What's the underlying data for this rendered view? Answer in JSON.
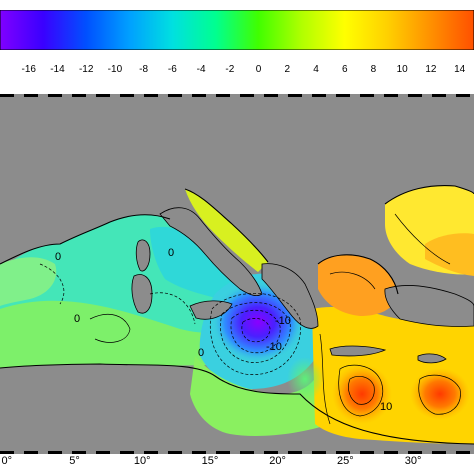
{
  "colorbar": {
    "ticks": [
      "-16",
      "-14",
      "-12",
      "-10",
      "-8",
      "-6",
      "-4",
      "-2",
      "0",
      "2",
      "4",
      "6",
      "8",
      "10",
      "12",
      "14"
    ],
    "tick_values": [
      -16,
      -14,
      -12,
      -10,
      -8,
      -6,
      -4,
      -2,
      0,
      2,
      4,
      6,
      8,
      10,
      12,
      14
    ],
    "range": [
      -18,
      15
    ],
    "colors": [
      "#8000ff",
      "#3a00ff",
      "#0050ff",
      "#00a0ff",
      "#00e0e0",
      "#00ff90",
      "#40ff00",
      "#b0ff00",
      "#ffff00",
      "#ffd000",
      "#ff9000",
      "#ff5000"
    ]
  },
  "map": {
    "background": "#8c8c8c",
    "x_ticks": [
      "0°",
      "5°",
      "10°",
      "15°",
      "20°",
      "25°",
      "30°"
    ],
    "x_tick_values": [
      0,
      5,
      10,
      15,
      20,
      25,
      30
    ],
    "lon_range": [
      -0.5,
      34.5
    ],
    "contour_labels": [
      "0",
      "0",
      "0",
      "0",
      "-10",
      "-10",
      "10"
    ]
  }
}
